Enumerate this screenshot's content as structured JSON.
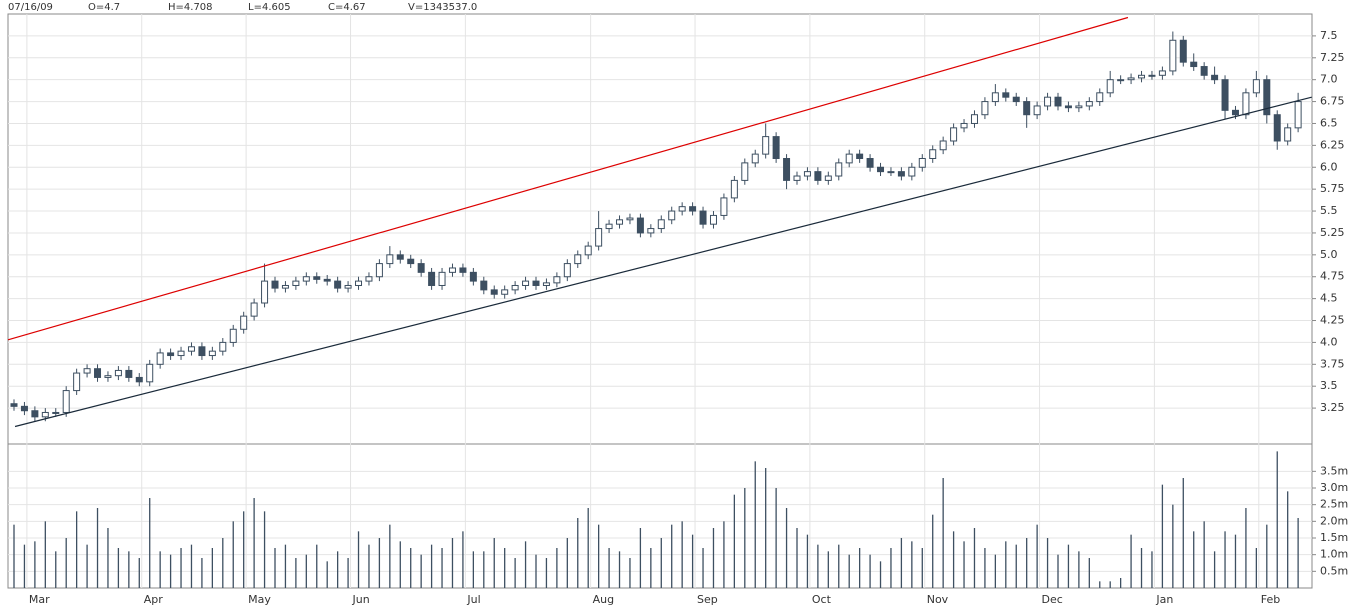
{
  "chart_data": {
    "type": "candlestick",
    "header": [
      "07/16/09",
      "O=4.7",
      "H=4.708",
      "L=4.605",
      "C=4.67",
      "V=1343537.0"
    ],
    "categories": [
      null,
      null,
      "Mar",
      null,
      null,
      null,
      null,
      null,
      null,
      null,
      null,
      null,
      null,
      "Apr",
      null,
      null,
      null,
      null,
      null,
      null,
      null,
      null,
      null,
      "May",
      null,
      null,
      null,
      null,
      null,
      null,
      null,
      null,
      null,
      "Jun",
      null,
      null,
      null,
      null,
      null,
      null,
      null,
      null,
      null,
      null,
      "Jul",
      null,
      null,
      null,
      null,
      null,
      null,
      null,
      null,
      null,
      null,
      null,
      "Aug",
      null,
      null,
      null,
      null,
      null,
      null,
      null,
      null,
      null,
      "Sep",
      null,
      null,
      null,
      null,
      null,
      null,
      null,
      null,
      null,
      null,
      "Oct",
      null,
      null,
      null,
      null,
      null,
      null,
      null,
      null,
      null,
      null,
      "Nov",
      null,
      null,
      null,
      null,
      null,
      null,
      null,
      null,
      null,
      null,
      "Dec",
      null,
      null,
      null,
      null,
      null,
      null,
      null,
      null,
      null,
      null,
      "Jan",
      null,
      null,
      null,
      null,
      null,
      null,
      null,
      null,
      null,
      "Feb",
      null,
      null,
      null
    ],
    "open": [
      3.3,
      3.27,
      3.22,
      3.15,
      3.2,
      3.2,
      3.45,
      3.65,
      3.7,
      3.6,
      3.62,
      3.68,
      3.6,
      3.55,
      3.75,
      3.88,
      3.85,
      3.9,
      3.95,
      3.85,
      3.9,
      4.0,
      4.15,
      4.3,
      4.45,
      4.7,
      4.62,
      4.65,
      4.7,
      4.75,
      4.72,
      4.7,
      4.62,
      4.65,
      4.7,
      4.75,
      4.9,
      5.0,
      4.95,
      4.9,
      4.8,
      4.65,
      4.8,
      4.85,
      4.8,
      4.7,
      4.6,
      4.55,
      4.6,
      4.65,
      4.7,
      4.65,
      4.68,
      4.75,
      4.9,
      5.0,
      5.1,
      5.3,
      5.35,
      5.4,
      5.42,
      5.25,
      5.3,
      5.4,
      5.5,
      5.55,
      5.5,
      5.35,
      5.45,
      5.65,
      5.85,
      6.05,
      6.15,
      6.35,
      6.1,
      5.85,
      5.9,
      5.95,
      5.85,
      5.9,
      6.05,
      6.15,
      6.1,
      6.0,
      5.95,
      5.95,
      5.9,
      6.0,
      6.1,
      6.2,
      6.3,
      6.45,
      6.5,
      6.6,
      6.75,
      6.85,
      6.8,
      6.75,
      6.6,
      6.7,
      6.8,
      6.7,
      6.68,
      6.7,
      6.75,
      6.85,
      7.0,
      7.0,
      7.02,
      7.05,
      7.05,
      7.1,
      7.45,
      7.2,
      7.15,
      7.05,
      7.0,
      6.65,
      6.6,
      6.85,
      7.0,
      6.6,
      6.3,
      6.45
    ],
    "high": [
      3.35,
      3.32,
      3.27,
      3.25,
      3.25,
      3.5,
      3.7,
      3.75,
      3.75,
      3.67,
      3.73,
      3.73,
      3.65,
      3.8,
      3.93,
      3.93,
      3.95,
      4.0,
      4.0,
      3.95,
      4.05,
      4.2,
      4.35,
      4.5,
      4.9,
      4.75,
      4.7,
      4.75,
      4.8,
      4.8,
      4.77,
      4.75,
      4.7,
      4.75,
      4.8,
      4.95,
      5.1,
      5.05,
      5.0,
      4.95,
      4.85,
      4.85,
      4.9,
      4.9,
      4.85,
      4.75,
      4.65,
      4.65,
      4.7,
      4.75,
      4.75,
      4.73,
      4.8,
      4.95,
      5.05,
      5.15,
      5.5,
      5.4,
      5.45,
      5.47,
      5.47,
      5.35,
      5.45,
      5.55,
      5.6,
      5.6,
      5.55,
      5.5,
      5.7,
      5.9,
      6.1,
      6.2,
      6.5,
      6.4,
      6.15,
      5.95,
      6.0,
      6.0,
      5.95,
      6.1,
      6.2,
      6.2,
      6.15,
      6.05,
      6.0,
      6.0,
      6.05,
      6.15,
      6.25,
      6.35,
      6.5,
      6.55,
      6.65,
      6.8,
      6.95,
      6.9,
      6.85,
      6.8,
      6.75,
      6.85,
      6.85,
      6.75,
      6.75,
      6.8,
      6.9,
      7.1,
      7.05,
      7.07,
      7.1,
      7.1,
      7.15,
      7.55,
      7.5,
      7.3,
      7.2,
      7.15,
      7.05,
      6.7,
      6.9,
      7.1,
      7.05,
      6.65,
      6.5,
      6.85
    ],
    "low": [
      3.22,
      3.17,
      3.1,
      3.1,
      3.15,
      3.15,
      3.4,
      3.6,
      3.55,
      3.55,
      3.57,
      3.55,
      3.5,
      3.5,
      3.7,
      3.8,
      3.8,
      3.85,
      3.8,
      3.8,
      3.85,
      3.95,
      4.1,
      4.25,
      4.4,
      4.57,
      4.57,
      4.6,
      4.65,
      4.67,
      4.65,
      4.57,
      4.57,
      4.6,
      4.65,
      4.7,
      4.85,
      4.9,
      4.85,
      4.75,
      4.6,
      4.6,
      4.75,
      4.75,
      4.65,
      4.55,
      4.5,
      4.5,
      4.55,
      4.6,
      4.6,
      4.6,
      4.63,
      4.7,
      4.85,
      4.95,
      5.05,
      5.25,
      5.3,
      5.35,
      5.2,
      5.2,
      5.25,
      5.35,
      5.45,
      5.45,
      5.3,
      5.3,
      5.4,
      5.6,
      5.8,
      6.0,
      6.1,
      6.05,
      5.75,
      5.8,
      5.85,
      5.8,
      5.8,
      5.85,
      6.0,
      6.05,
      5.95,
      5.9,
      5.9,
      5.85,
      5.85,
      5.95,
      6.05,
      6.15,
      6.25,
      6.4,
      6.45,
      6.55,
      6.7,
      6.75,
      6.7,
      6.45,
      6.55,
      6.65,
      6.65,
      6.63,
      6.63,
      6.65,
      6.7,
      6.8,
      6.95,
      6.95,
      6.97,
      7.0,
      7.0,
      7.05,
      7.15,
      7.1,
      7.0,
      6.95,
      6.55,
      6.55,
      6.55,
      6.8,
      6.5,
      6.2,
      6.25,
      6.4
    ],
    "close": [
      3.27,
      3.22,
      3.15,
      3.2,
      3.2,
      3.45,
      3.65,
      3.7,
      3.6,
      3.62,
      3.68,
      3.6,
      3.55,
      3.75,
      3.88,
      3.85,
      3.9,
      3.95,
      3.85,
      3.9,
      4.0,
      4.15,
      4.3,
      4.45,
      4.7,
      4.62,
      4.65,
      4.7,
      4.75,
      4.72,
      4.7,
      4.62,
      4.65,
      4.7,
      4.75,
      4.9,
      5.0,
      4.95,
      4.9,
      4.8,
      4.65,
      4.8,
      4.85,
      4.8,
      4.7,
      4.6,
      4.55,
      4.6,
      4.65,
      4.7,
      4.65,
      4.68,
      4.75,
      4.9,
      5.0,
      5.1,
      5.3,
      5.35,
      5.4,
      5.42,
      5.25,
      5.3,
      5.4,
      5.5,
      5.55,
      5.5,
      5.35,
      5.45,
      5.65,
      5.85,
      6.05,
      6.15,
      6.35,
      6.1,
      5.85,
      5.9,
      5.95,
      5.85,
      5.9,
      6.05,
      6.15,
      6.1,
      6.0,
      5.95,
      5.95,
      5.9,
      6.0,
      6.1,
      6.2,
      6.3,
      6.45,
      6.5,
      6.6,
      6.75,
      6.85,
      6.8,
      6.75,
      6.6,
      6.7,
      6.8,
      6.7,
      6.68,
      6.7,
      6.75,
      6.85,
      7.0,
      7.0,
      7.02,
      7.05,
      7.05,
      7.1,
      7.45,
      7.2,
      7.15,
      7.05,
      7.0,
      6.65,
      6.6,
      6.85,
      7.0,
      6.6,
      6.3,
      6.45,
      6.75
    ],
    "volume": [
      1900000,
      1300000,
      1400000,
      2000000,
      1100000,
      1500000,
      2300000,
      1300000,
      2400000,
      1800000,
      1200000,
      1100000,
      900000,
      2700000,
      1100000,
      1000000,
      1200000,
      1300000,
      900000,
      1200000,
      1500000,
      2000000,
      2300000,
      2700000,
      2300000,
      1200000,
      1300000,
      900000,
      1000000,
      1300000,
      800000,
      1100000,
      900000,
      1700000,
      1300000,
      1500000,
      1900000,
      1400000,
      1200000,
      1000000,
      1300000,
      1200000,
      1500000,
      1700000,
      1100000,
      1100000,
      1500000,
      1200000,
      900000,
      1400000,
      1000000,
      900000,
      1200000,
      1500000,
      2100000,
      2400000,
      1900000,
      1200000,
      1100000,
      900000,
      1800000,
      1200000,
      1500000,
      1900000,
      2000000,
      1600000,
      1200000,
      1800000,
      2000000,
      2800000,
      3000000,
      3800000,
      3600000,
      3000000,
      2400000,
      1800000,
      1600000,
      1300000,
      1100000,
      1300000,
      1000000,
      1200000,
      1000000,
      800000,
      1200000,
      1500000,
      1400000,
      1200000,
      2200000,
      3300000,
      1700000,
      1400000,
      1800000,
      1200000,
      1000000,
      1400000,
      1300000,
      1500000,
      1900000,
      1500000,
      1000000,
      1300000,
      1100000,
      900000,
      200000,
      200000,
      300000,
      1600000,
      1200000,
      1100000,
      3100000,
      2500000,
      3300000,
      1700000,
      2000000,
      1100000,
      1700000,
      1600000,
      2400000,
      1200000,
      1900000,
      4100000,
      2900000,
      2100000
    ],
    "up_color": "#ffffff",
    "down_color": "#3d4f61",
    "edge_color": "#3d4f61",
    "volume_color": "#3d4f61",
    "ylim": [
      2.84,
      7.75
    ],
    "yticks": [
      3.25,
      3.5,
      3.75,
      {
        "value": 4.0,
        "label": "4.0"
      },
      4.25,
      4.5,
      4.75,
      {
        "value": 5.0,
        "label": "5.0"
      },
      5.25,
      5.5,
      5.75,
      {
        "value": 6.0,
        "label": "6.0"
      },
      6.25,
      6.5,
      6.75,
      {
        "value": 7.0,
        "label": "7.0"
      },
      7.25,
      7.5
    ],
    "volume_ylim": [
      0,
      4260000
    ],
    "volume_yticks": [
      {
        "value": 500000,
        "label": "0.5m"
      },
      {
        "value": 1000000,
        "label": "1.0m"
      },
      {
        "value": 1500000,
        "label": "1.5m"
      },
      {
        "value": 2000000,
        "label": "2.0m"
      },
      {
        "value": 2500000,
        "label": "2.5m"
      },
      {
        "value": 3000000,
        "label": "3.0m"
      },
      {
        "value": 3500000,
        "label": "3.5m"
      }
    ],
    "grid": true,
    "trendlines": [
      {
        "color": "#dd0000",
        "x": [
          -0.57,
          106.7
        ],
        "y": [
          4.03,
          7.71
        ]
      },
      {
        "color": "#1a2a3a",
        "x": [
          0.1,
          124.3
        ],
        "y": [
          3.04,
          6.8
        ]
      }
    ]
  }
}
